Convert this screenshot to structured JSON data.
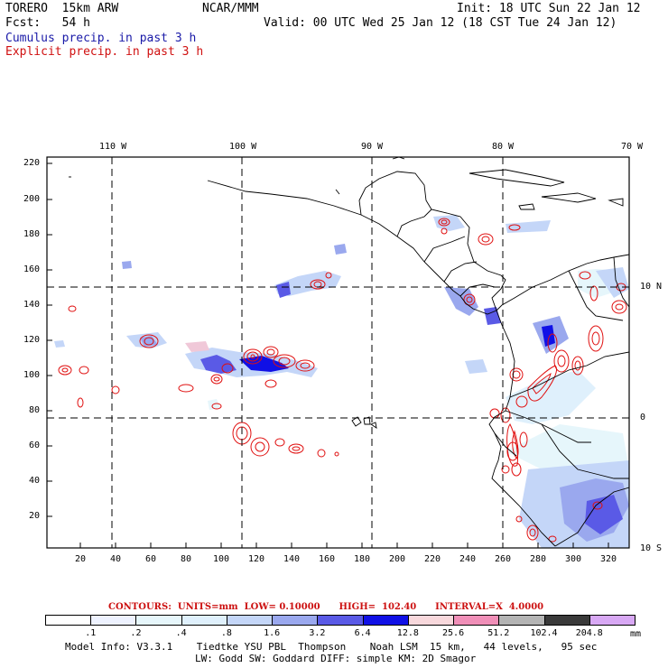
{
  "header": {
    "model": "TORERO  15km ARW",
    "forecast": "Fcst:   54 h",
    "center": "NCAR/MMM",
    "init": "Init: 18 UTC Sun 22 Jan 12",
    "valid": "Valid: 00 UTC Wed 25 Jan 12 (18 CST Tue 24 Jan 12)"
  },
  "fields": {
    "cumulus": "Cumulus precip. in past 3 h",
    "explicit": "Explicit precip. in past 3 h"
  },
  "map": {
    "lon_labels": [
      "110 W",
      "100 W",
      "90 W",
      "80 W",
      "70 W"
    ],
    "lat_labels_right": [
      "10 N",
      "0",
      "10 S"
    ],
    "y_ticks": [
      "220",
      "200",
      "180",
      "160",
      "140",
      "120",
      "100",
      "80",
      "60",
      "40",
      "20"
    ],
    "x_ticks": [
      "20",
      "40",
      "60",
      "80",
      "100",
      "120",
      "140",
      "160",
      "180",
      "200",
      "220",
      "240",
      "260",
      "280",
      "300",
      "320"
    ],
    "colors": {
      "coast": "#000000",
      "explicit_contour": "#e01010",
      "grid": "#000000"
    }
  },
  "contours_info": "CONTOURS:  UNITS=mm  LOW= 0.10000      HIGH=  102.40      INTERVAL=X  4.0000",
  "colorbar": {
    "labels": [
      ".1",
      ".2",
      ".4",
      ".8",
      "1.6",
      "3.2",
      "6.4",
      "12.8",
      "25.6",
      "51.2",
      "102.4",
      "204.8"
    ],
    "unit": "mm",
    "colors": [
      "#ffffff",
      "#eef2ff",
      "#e6f6fb",
      "#dff0fc",
      "#c4d6f8",
      "#9aa8ee",
      "#5a5ae6",
      "#1010e6",
      "#f8d8dc",
      "#f08fb8",
      "#b4b4b4",
      "#3a3a3a",
      "#d8a8f4"
    ]
  },
  "model_info": {
    "line1": "Model Info: V3.3.1    Tiedtke YSU PBL  Thompson    Noah LSM  15 km,   44 levels,   95 sec",
    "line2": "LW: Godd SW: Goddard DIFF: simple KM: 2D Smagor"
  }
}
